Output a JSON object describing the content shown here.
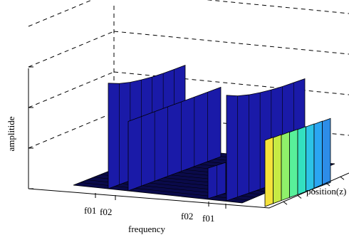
{
  "chart_data": {
    "type": "surface3d",
    "title": "",
    "xlabel": "frequency",
    "ylabel": "position(z)",
    "zlabel": "amplitide",
    "grid": true,
    "legend": "none",
    "x_ticks": [
      "f01",
      "f02",
      "f02",
      "f01"
    ],
    "z_tick_count": 4,
    "colormap": "jet",
    "series": [
      {
        "name": "",
        "frequency_tick": 0,
        "amplitude_profile": [
          1.9,
          1.82,
          1.77,
          1.74,
          1.72,
          1.71,
          1.71,
          1.71
        ],
        "color": "#1a1aa8"
      },
      {
        "name": "",
        "frequency_tick": 1,
        "amplitude_profile": [
          1.25,
          1.25,
          1.25,
          1.25,
          1.25,
          1.25,
          1.25,
          1.25
        ],
        "color": "#1a1aa8"
      },
      {
        "name": "",
        "frequency_tick": 2,
        "amplitude_profile": [
          0.55,
          0.55,
          0.55
        ],
        "color": "#1a1aa8"
      },
      {
        "name": "",
        "frequency_tick": 3,
        "amplitude_profile": [
          1.9,
          1.82,
          1.77,
          1.74,
          1.72,
          1.71,
          1.71,
          1.71
        ],
        "color": "#1a1aa8"
      }
    ],
    "front_edge_colors": [
      "#f5e23b",
      "#c7ea44",
      "#8ff06a",
      "#58f09a",
      "#33e0c0",
      "#2cc3e6",
      "#2aa6f2",
      "#2d8de8"
    ]
  }
}
